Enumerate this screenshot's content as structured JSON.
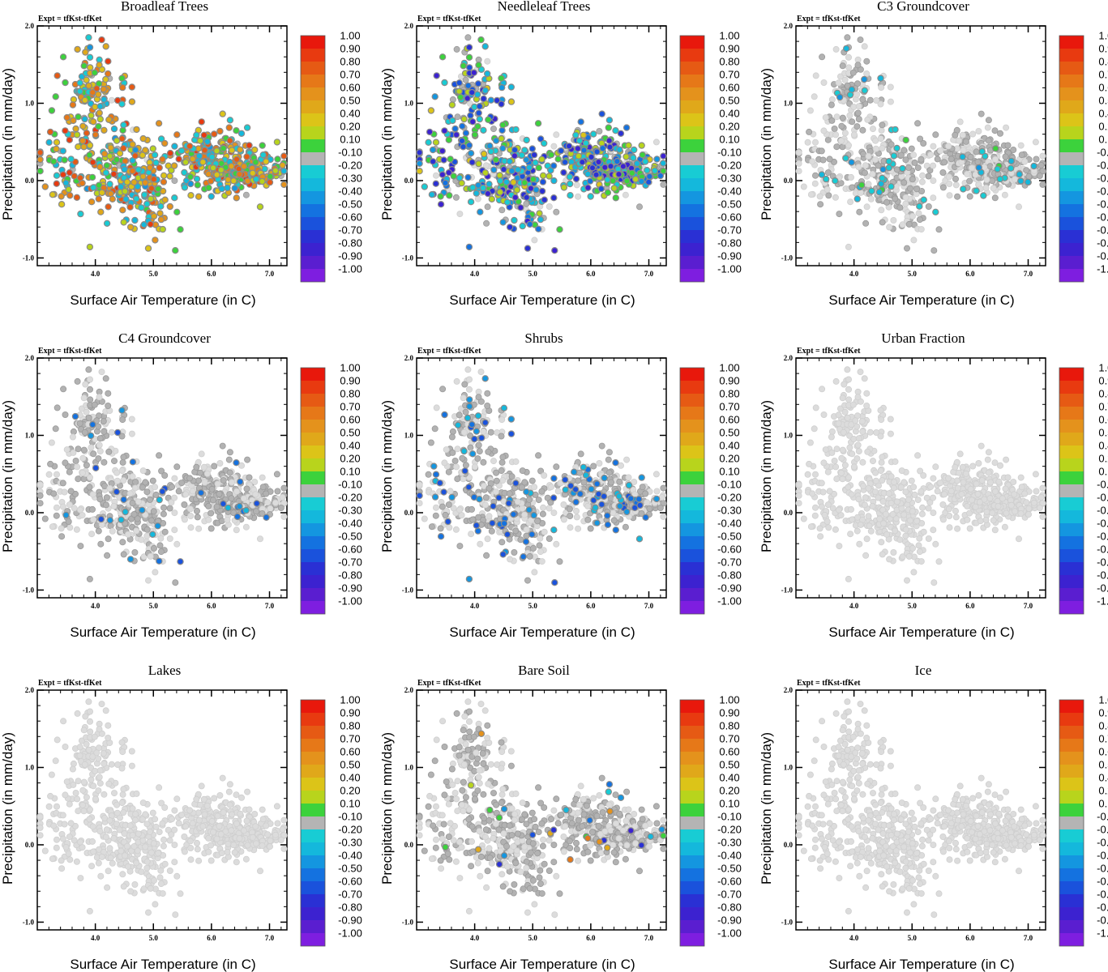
{
  "figure": {
    "expt_label": "Expt = tfKst-tfKet"
  },
  "colorbar": {
    "labels": [
      "1.00",
      "0.90",
      "0.80",
      "0.70",
      "0.60",
      "0.50",
      "0.40",
      "0.20",
      "0.10",
      "-0.10",
      "-0.20",
      "-0.30",
      "-0.40",
      "-0.50",
      "-0.60",
      "-0.70",
      "-0.80",
      "-0.90",
      "-1.00"
    ],
    "colors": [
      "#e8180c",
      "#e83a10",
      "#e65a14",
      "#e67818",
      "#e4921c",
      "#e0a81a",
      "#dcc418",
      "#b8d41c",
      "#3cd23c",
      "#b4b4b4",
      "#18ccd4",
      "#14b8dc",
      "#1496e0",
      "#1472e0",
      "#1a52dc",
      "#2a30d4",
      "#3c22d0",
      "#5a1ed0",
      "#7e1ee0"
    ]
  },
  "chart_data": [
    {
      "type": "scatter",
      "title": "Broadleaf Trees",
      "xlabel": "Surface Air Temperature (in C)",
      "ylabel": "Precipitation (in mm/day)",
      "xlim": [
        3.0,
        7.3
      ],
      "ylim": [
        -1.1,
        2.0
      ],
      "xticks": [
        "4.0",
        "5.0",
        "6.0",
        "7.0"
      ],
      "yticks": [
        "2.0",
        "1.0",
        "0.0",
        "-1.0"
      ],
      "colored_fraction": 0.95,
      "color_range": [
        -0.3,
        0.9
      ],
      "seed": 11
    },
    {
      "type": "scatter",
      "title": "Needleleaf Trees",
      "xlabel": "Surface Air Temperature (in C)",
      "ylabel": "Precipitation (in mm/day)",
      "xlim": [
        3.0,
        7.3
      ],
      "ylim": [
        -1.1,
        2.0
      ],
      "xticks": [
        "4.0",
        "5.0",
        "6.0",
        "7.0"
      ],
      "yticks": [
        "2.0",
        "1.0",
        "0.0",
        "-1.0"
      ],
      "colored_fraction": 0.75,
      "color_range": [
        -0.8,
        0.3
      ],
      "seed": 23
    },
    {
      "type": "scatter",
      "title": "C3 Groundcover",
      "xlabel": "Surface Air Temperature (in C)",
      "ylabel": "Precipitation (in mm/day)",
      "xlim": [
        3.0,
        7.3
      ],
      "ylim": [
        -1.1,
        2.0
      ],
      "xticks": [
        "4.0",
        "5.0",
        "6.0",
        "7.0"
      ],
      "yticks": [
        "2.0",
        "1.0",
        "0.0",
        "-1.0"
      ],
      "colored_fraction": 0.06,
      "color_range": [
        -0.3,
        0.1
      ],
      "seed": 37
    },
    {
      "type": "scatter",
      "title": "C4 Groundcover",
      "xlabel": "Surface Air Temperature (in C)",
      "ylabel": "Precipitation (in mm/day)",
      "xlim": [
        3.0,
        7.3
      ],
      "ylim": [
        -1.1,
        2.0
      ],
      "xticks": [
        "4.0",
        "5.0",
        "6.0",
        "7.0"
      ],
      "yticks": [
        "2.0",
        "1.0",
        "0.0",
        "-1.0"
      ],
      "colored_fraction": 0.05,
      "color_range": [
        -0.6,
        -0.2
      ],
      "seed": 41
    },
    {
      "type": "scatter",
      "title": "Shrubs",
      "xlabel": "Surface Air Temperature (in C)",
      "ylabel": "Precipitation (in mm/day)",
      "xlim": [
        3.0,
        7.3
      ],
      "ylim": [
        -1.1,
        2.0
      ],
      "xticks": [
        "4.0",
        "5.0",
        "6.0",
        "7.0"
      ],
      "yticks": [
        "2.0",
        "1.0",
        "0.0",
        "-1.0"
      ],
      "colored_fraction": 0.12,
      "color_range": [
        -0.6,
        -0.2
      ],
      "seed": 53
    },
    {
      "type": "scatter",
      "title": "Urban Fraction",
      "xlabel": "Surface Air Temperature (in C)",
      "ylabel": "Precipitation (in mm/day)",
      "xlim": [
        3.0,
        7.3
      ],
      "ylim": [
        -1.1,
        2.0
      ],
      "xticks": [
        "4.0",
        "5.0",
        "6.0",
        "7.0"
      ],
      "yticks": [
        "2.0",
        "1.0",
        "0.0",
        "-1.0"
      ],
      "colored_fraction": 0.0,
      "color_range": [
        -0.1,
        0.1
      ],
      "seed": 61
    },
    {
      "type": "scatter",
      "title": "Lakes",
      "xlabel": "Surface Air Temperature (in C)",
      "ylabel": "Precipitation (in mm/day)",
      "xlim": [
        3.0,
        7.3
      ],
      "ylim": [
        -1.1,
        2.0
      ],
      "xticks": [
        "4.0",
        "5.0",
        "6.0",
        "7.0"
      ],
      "yticks": [
        "2.0",
        "1.0",
        "0.0",
        "-1.0"
      ],
      "colored_fraction": 0.0,
      "color_range": [
        -0.1,
        0.1
      ],
      "seed": 71
    },
    {
      "type": "scatter",
      "title": "Bare Soil",
      "xlabel": "Surface Air Temperature (in C)",
      "ylabel": "Precipitation (in mm/day)",
      "xlim": [
        3.0,
        7.3
      ],
      "ylim": [
        -1.1,
        2.0
      ],
      "xticks": [
        "4.0",
        "5.0",
        "6.0",
        "7.0"
      ],
      "yticks": [
        "2.0",
        "1.0",
        "0.0",
        "-1.0"
      ],
      "colored_fraction": 0.05,
      "color_range": [
        -0.8,
        0.7
      ],
      "seed": 83
    },
    {
      "type": "scatter",
      "title": "Ice",
      "xlabel": "Surface Air Temperature (in C)",
      "ylabel": "Precipitation (in mm/day)",
      "xlim": [
        3.0,
        7.3
      ],
      "ylim": [
        -1.1,
        2.0
      ],
      "xticks": [
        "4.0",
        "5.0",
        "6.0",
        "7.0"
      ],
      "yticks": [
        "2.0",
        "1.0",
        "0.0",
        "-1.0"
      ],
      "colored_fraction": 0.0,
      "color_range": [
        -0.1,
        0.1
      ],
      "seed": 97
    }
  ]
}
